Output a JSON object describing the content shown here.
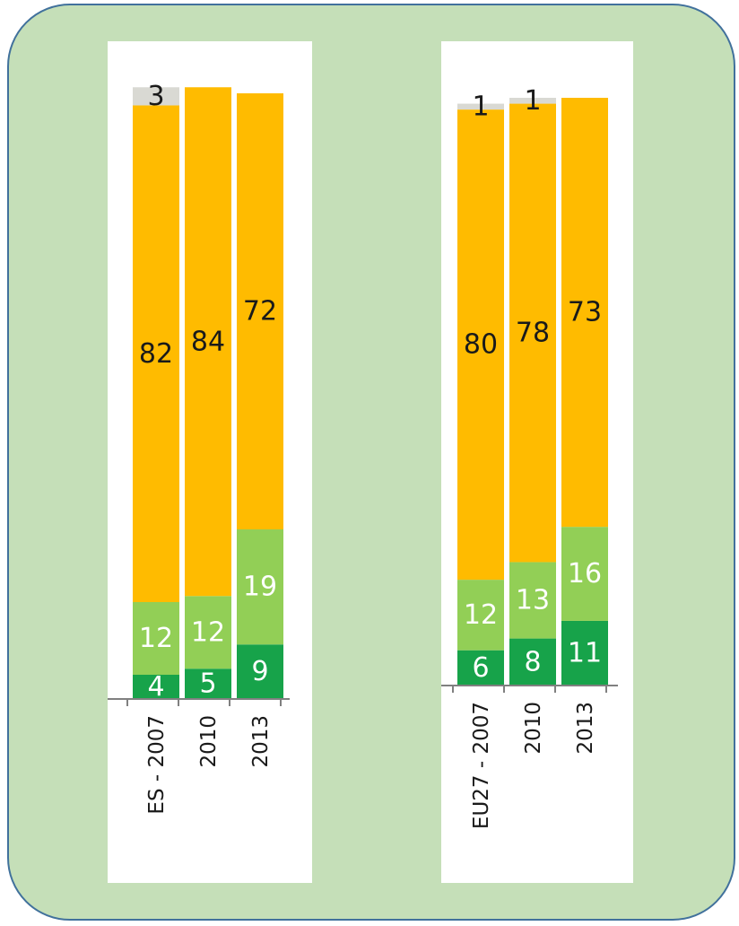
{
  "colors": {
    "background": "#c5dfb8",
    "border": "#41719c",
    "segments": [
      "#17a34a",
      "#92cf56",
      "#ffbb00",
      "#d9d9d3"
    ],
    "label_light": "#ffffff",
    "label_dark": "#1a1a1a"
  },
  "chart_data": [
    {
      "type": "bar",
      "stacked": true,
      "categories": [
        "ES - 2007",
        "2010",
        "2013"
      ],
      "series": [
        {
          "values": [
            4,
            5,
            9
          ]
        },
        {
          "values": [
            12,
            12,
            19
          ]
        },
        {
          "values": [
            82,
            84,
            72
          ]
        },
        {
          "values": [
            3,
            null,
            null
          ]
        }
      ],
      "ylim": [
        0,
        101
      ],
      "grid": false,
      "legend": "none"
    },
    {
      "type": "bar",
      "stacked": true,
      "categories": [
        "EU27 - 2007",
        "2010",
        "2013"
      ],
      "series": [
        {
          "values": [
            6,
            8,
            11
          ]
        },
        {
          "values": [
            12,
            13,
            16
          ]
        },
        {
          "values": [
            80,
            78,
            73
          ]
        },
        {
          "values": [
            1,
            1,
            null
          ]
        }
      ],
      "ylim": [
        0,
        100
      ],
      "grid": false,
      "legend": "none"
    }
  ]
}
